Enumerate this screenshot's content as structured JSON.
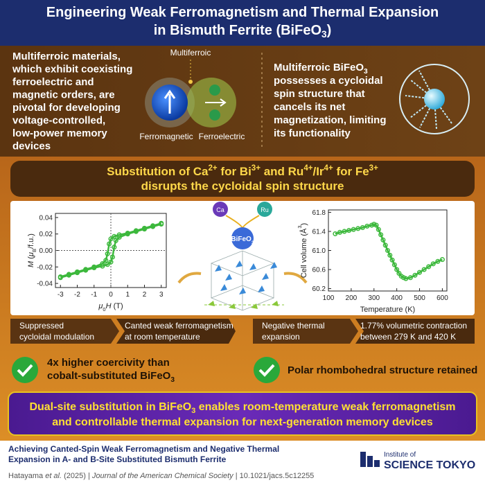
{
  "header": {
    "title": [
      "Engineering Weak Ferromagnetism and Thermal Expansion",
      [
        "in Bismuth Ferrite (BiFeO",
        {
          "sub": "3"
        },
        ")"
      ]
    ]
  },
  "intro": {
    "left": [
      "Multiferroic materials,",
      "which exhibit coexisting",
      "ferroelectric and",
      "magnetic orders, are",
      "pivotal for developing",
      "voltage-controlled,",
      "low-power memory",
      "devices"
    ],
    "diagram": {
      "top": "Multiferroic",
      "left": "Ferromagnetic",
      "right": "Ferroelectric"
    },
    "right": [
      [
        "Multiferroic BiFeO",
        {
          "sub": "3"
        }
      ],
      "possesses a cycloidal",
      "spin structure that",
      "cancels its net",
      "magnetization, limiting",
      "its functionality"
    ]
  },
  "substitution": {
    "lines": [
      [
        "Substitution of Ca",
        {
          "sup": "2+"
        },
        " for Bi",
        {
          "sup": "3+"
        },
        " and Ru",
        {
          "sup": "4+"
        },
        "/Ir",
        {
          "sup": "4+"
        },
        " for Fe",
        {
          "sup": "3+"
        }
      ],
      "disrupts the cycloidal spin structure"
    ]
  },
  "crystal": {
    "ca": "Ca",
    "ru": "Ru",
    "host": [
      "BiFeO",
      {
        "sub": "3"
      }
    ]
  },
  "magnetization_chart": {
    "type": "scatter",
    "xlabel": [
      {
        "i": "μ"
      },
      {
        "sub": "0"
      },
      {
        "i": "H"
      },
      " (T)"
    ],
    "ylabel": [
      {
        "i": "M"
      },
      " (",
      {
        "i": "μ"
      },
      {
        "sub": "B"
      },
      "/f.u.)"
    ],
    "xlim": [
      -3.3,
      3.3
    ],
    "ylim": [
      -0.045,
      0.045
    ],
    "xticks": [
      -3,
      -2,
      -1,
      0,
      1,
      2,
      3
    ],
    "yticks": [
      -0.04,
      -0.02,
      {
        "value": 0,
        "label": "0.00"
      },
      0.02,
      0.04
    ],
    "zero_lines": true,
    "color": "#3cb83c",
    "series": [
      {
        "x": [
          3,
          2.5,
          2,
          1.5,
          1,
          0.5,
          0.2,
          0,
          -0.1,
          -0.2,
          -0.3,
          -0.5,
          -1,
          -1.5,
          -2,
          -2.5,
          -3
        ],
        "values": [
          0.033,
          0.03,
          0.027,
          0.024,
          0.021,
          0.019,
          0.017,
          0.014,
          0.008,
          -0.004,
          -0.012,
          -0.016,
          -0.02,
          -0.023,
          -0.026,
          -0.029,
          -0.032
        ]
      },
      {
        "x": [
          -3,
          -2.5,
          -2,
          -1.5,
          -1,
          -0.5,
          -0.2,
          0,
          0.1,
          0.2,
          0.3,
          0.5,
          1,
          1.5,
          2,
          2.5,
          3
        ],
        "values": [
          -0.033,
          -0.03,
          -0.027,
          -0.024,
          -0.021,
          -0.019,
          -0.017,
          -0.014,
          -0.008,
          0.004,
          0.012,
          0.016,
          0.02,
          0.023,
          0.026,
          0.029,
          0.032
        ]
      }
    ]
  },
  "volume_chart": {
    "type": "scatter",
    "xlabel": "Temperature (K)",
    "ylabel": [
      "Cell volume (Å",
      {
        "sup": "3"
      },
      ")"
    ],
    "xlim": [
      100,
      620
    ],
    "ylim": [
      60.15,
      61.85
    ],
    "xticks": [
      100,
      200,
      300,
      400,
      500,
      600
    ],
    "yticks": [
      60.2,
      60.6,
      {
        "value": 61,
        "label": "61.0"
      },
      61.4,
      61.8
    ],
    "zero_lines": false,
    "color": "#3cb83c",
    "series": [
      {
        "x": [
          130,
          150,
          170,
          190,
          210,
          230,
          250,
          270,
          290,
          300,
          310,
          320,
          330,
          340,
          350,
          360,
          370,
          380,
          390,
          400,
          410,
          420,
          430,
          440,
          460,
          480,
          500,
          520,
          540,
          560,
          580,
          600
        ],
        "values": [
          61.35,
          61.38,
          61.4,
          61.42,
          61.44,
          61.46,
          61.48,
          61.51,
          61.53,
          61.55,
          61.53,
          61.44,
          61.33,
          61.22,
          61.11,
          61.0,
          60.9,
          60.8,
          60.7,
          60.6,
          60.52,
          60.46,
          60.43,
          60.41,
          60.43,
          60.48,
          60.54,
          60.6,
          60.66,
          60.72,
          60.77,
          60.81
        ]
      }
    ]
  },
  "findings": [
    [
      "Suppressed",
      "cycloidal modulation"
    ],
    [
      "Canted weak ferromagnetism",
      "at room temperature"
    ],
    [
      "Negative thermal",
      "expansion"
    ],
    [
      "1.77% volumetric contraction",
      "between 279 K and 420 K"
    ]
  ],
  "highlights": [
    [
      "4x higher coercivity than",
      [
        "cobalt-substituted BiFeO",
        {
          "sub": "3"
        }
      ]
    ],
    [
      "Polar rhombohedral structure retained"
    ]
  ],
  "conclusion": {
    "lines": [
      [
        "Dual-site substitution in BiFeO",
        {
          "sub": "3"
        },
        " enables room-temperature weak ferromagnetism"
      ],
      "and controllable thermal expansion for next-generation memory devices"
    ]
  },
  "footer": {
    "paper_title": [
      "Achieving Canted-Spin Weak Ferromagnetism and Negative Thermal",
      "Expansion in A- and B-Site Substituted Bismuth Ferrite"
    ],
    "citation": [
      "Hatayama ",
      {
        "i": "et al."
      },
      " (2025) | ",
      {
        "i": "Journal of the American Chemical Society"
      },
      " | 10.1021/jacs.5c12255"
    ],
    "logo": {
      "top": "Institute of",
      "bottom": "SCIENCE TOKYO"
    }
  }
}
